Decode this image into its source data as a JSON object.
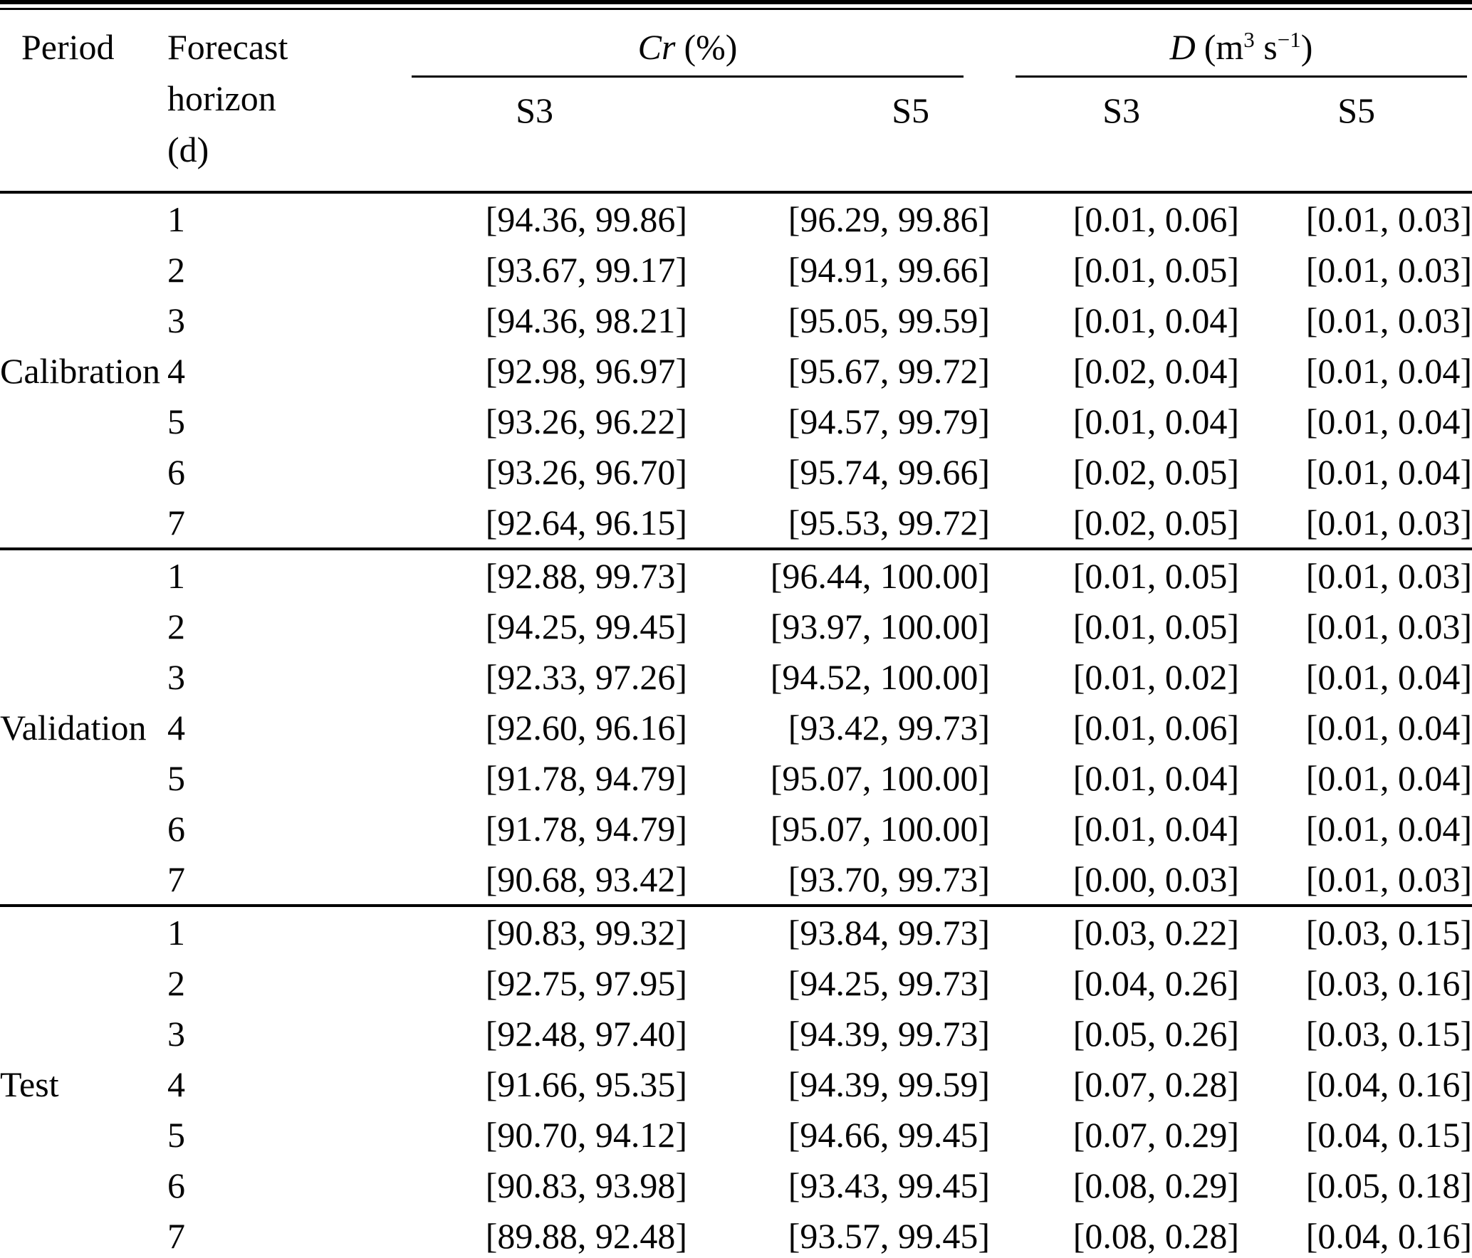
{
  "header": {
    "period": "Period",
    "forecast_lines": [
      "Forecast",
      "horizon",
      "(d)"
    ],
    "cr": {
      "symbol": "Cr",
      "unit": "(%)"
    },
    "d": {
      "symbol": "D",
      "open": "(m",
      "exp1": "3",
      "mid": " s",
      "exp2": "−1",
      "close": ")"
    },
    "sub": {
      "cr_s3": "S3",
      "cr_s5": "S5",
      "d_s3": "S3",
      "d_s5": "S5"
    }
  },
  "table": {
    "sections": [
      {
        "period": "Calibration",
        "rows": [
          {
            "horizon": "1",
            "cr_s3": "[94.36, 99.86]",
            "cr_s5": "[96.29, 99.86]",
            "d_s3": "[0.01, 0.06]",
            "d_s5": "[0.01, 0.03]"
          },
          {
            "horizon": "2",
            "cr_s3": "[93.67, 99.17]",
            "cr_s5": "[94.91, 99.66]",
            "d_s3": "[0.01, 0.05]",
            "d_s5": "[0.01, 0.03]"
          },
          {
            "horizon": "3",
            "cr_s3": "[94.36, 98.21]",
            "cr_s5": "[95.05, 99.59]",
            "d_s3": "[0.01, 0.04]",
            "d_s5": "[0.01, 0.03]"
          },
          {
            "horizon": "4",
            "cr_s3": "[92.98, 96.97]",
            "cr_s5": "[95.67, 99.72]",
            "d_s3": "[0.02, 0.04]",
            "d_s5": "[0.01, 0.04]"
          },
          {
            "horizon": "5",
            "cr_s3": "[93.26, 96.22]",
            "cr_s5": "[94.57, 99.79]",
            "d_s3": "[0.01, 0.04]",
            "d_s5": "[0.01, 0.04]"
          },
          {
            "horizon": "6",
            "cr_s3": "[93.26, 96.70]",
            "cr_s5": "[95.74, 99.66]",
            "d_s3": "[0.02, 0.05]",
            "d_s5": "[0.01, 0.04]"
          },
          {
            "horizon": "7",
            "cr_s3": "[92.64, 96.15]",
            "cr_s5": "[95.53, 99.72]",
            "d_s3": "[0.02, 0.05]",
            "d_s5": "[0.01, 0.03]"
          }
        ]
      },
      {
        "period": "Validation",
        "rows": [
          {
            "horizon": "1",
            "cr_s3": "[92.88, 99.73]",
            "cr_s5": "[96.44, 100.00]",
            "d_s3": "[0.01, 0.05]",
            "d_s5": "[0.01, 0.03]"
          },
          {
            "horizon": "2",
            "cr_s3": "[94.25, 99.45]",
            "cr_s5": "[93.97, 100.00]",
            "d_s3": "[0.01, 0.05]",
            "d_s5": "[0.01, 0.03]"
          },
          {
            "horizon": "3",
            "cr_s3": "[92.33, 97.26]",
            "cr_s5": "[94.52, 100.00]",
            "d_s3": "[0.01, 0.02]",
            "d_s5": "[0.01, 0.04]"
          },
          {
            "horizon": "4",
            "cr_s3": "[92.60, 96.16]",
            "cr_s5": "[93.42, 99.73]",
            "d_s3": "[0.01, 0.06]",
            "d_s5": "[0.01, 0.04]"
          },
          {
            "horizon": "5",
            "cr_s3": "[91.78, 94.79]",
            "cr_s5": "[95.07, 100.00]",
            "d_s3": "[0.01, 0.04]",
            "d_s5": "[0.01, 0.04]"
          },
          {
            "horizon": "6",
            "cr_s3": "[91.78, 94.79]",
            "cr_s5": "[95.07, 100.00]",
            "d_s3": "[0.01, 0.04]",
            "d_s5": "[0.01, 0.04]"
          },
          {
            "horizon": "7",
            "cr_s3": "[90.68, 93.42]",
            "cr_s5": "[93.70, 99.73]",
            "d_s3": "[0.00, 0.03]",
            "d_s5": "[0.01, 0.03]"
          }
        ]
      },
      {
        "period": "Test",
        "rows": [
          {
            "horizon": "1",
            "cr_s3": "[90.83, 99.32]",
            "cr_s5": "[93.84, 99.73]",
            "d_s3": "[0.03, 0.22]",
            "d_s5": "[0.03, 0.15]"
          },
          {
            "horizon": "2",
            "cr_s3": "[92.75, 97.95]",
            "cr_s5": "[94.25, 99.73]",
            "d_s3": "[0.04, 0.26]",
            "d_s5": "[0.03, 0.16]"
          },
          {
            "horizon": "3",
            "cr_s3": "[92.48, 97.40]",
            "cr_s5": "[94.39, 99.73]",
            "d_s3": "[0.05, 0.26]",
            "d_s5": "[0.03, 0.15]"
          },
          {
            "horizon": "4",
            "cr_s3": "[91.66, 95.35]",
            "cr_s5": "[94.39, 99.59]",
            "d_s3": "[0.07, 0.28]",
            "d_s5": "[0.04, 0.16]"
          },
          {
            "horizon": "5",
            "cr_s3": "[90.70, 94.12]",
            "cr_s5": "[94.66, 99.45]",
            "d_s3": "[0.07, 0.29]",
            "d_s5": "[0.04, 0.15]"
          },
          {
            "horizon": "6",
            "cr_s3": "[90.83, 93.98]",
            "cr_s5": "[93.43, 99.45]",
            "d_s3": "[0.08, 0.29]",
            "d_s5": "[0.05, 0.18]"
          },
          {
            "horizon": "7",
            "cr_s3": "[89.88, 92.48]",
            "cr_s5": "[93.57, 99.45]",
            "d_s3": "[0.08, 0.28]",
            "d_s5": "[0.04, 0.16]"
          }
        ]
      }
    ]
  }
}
